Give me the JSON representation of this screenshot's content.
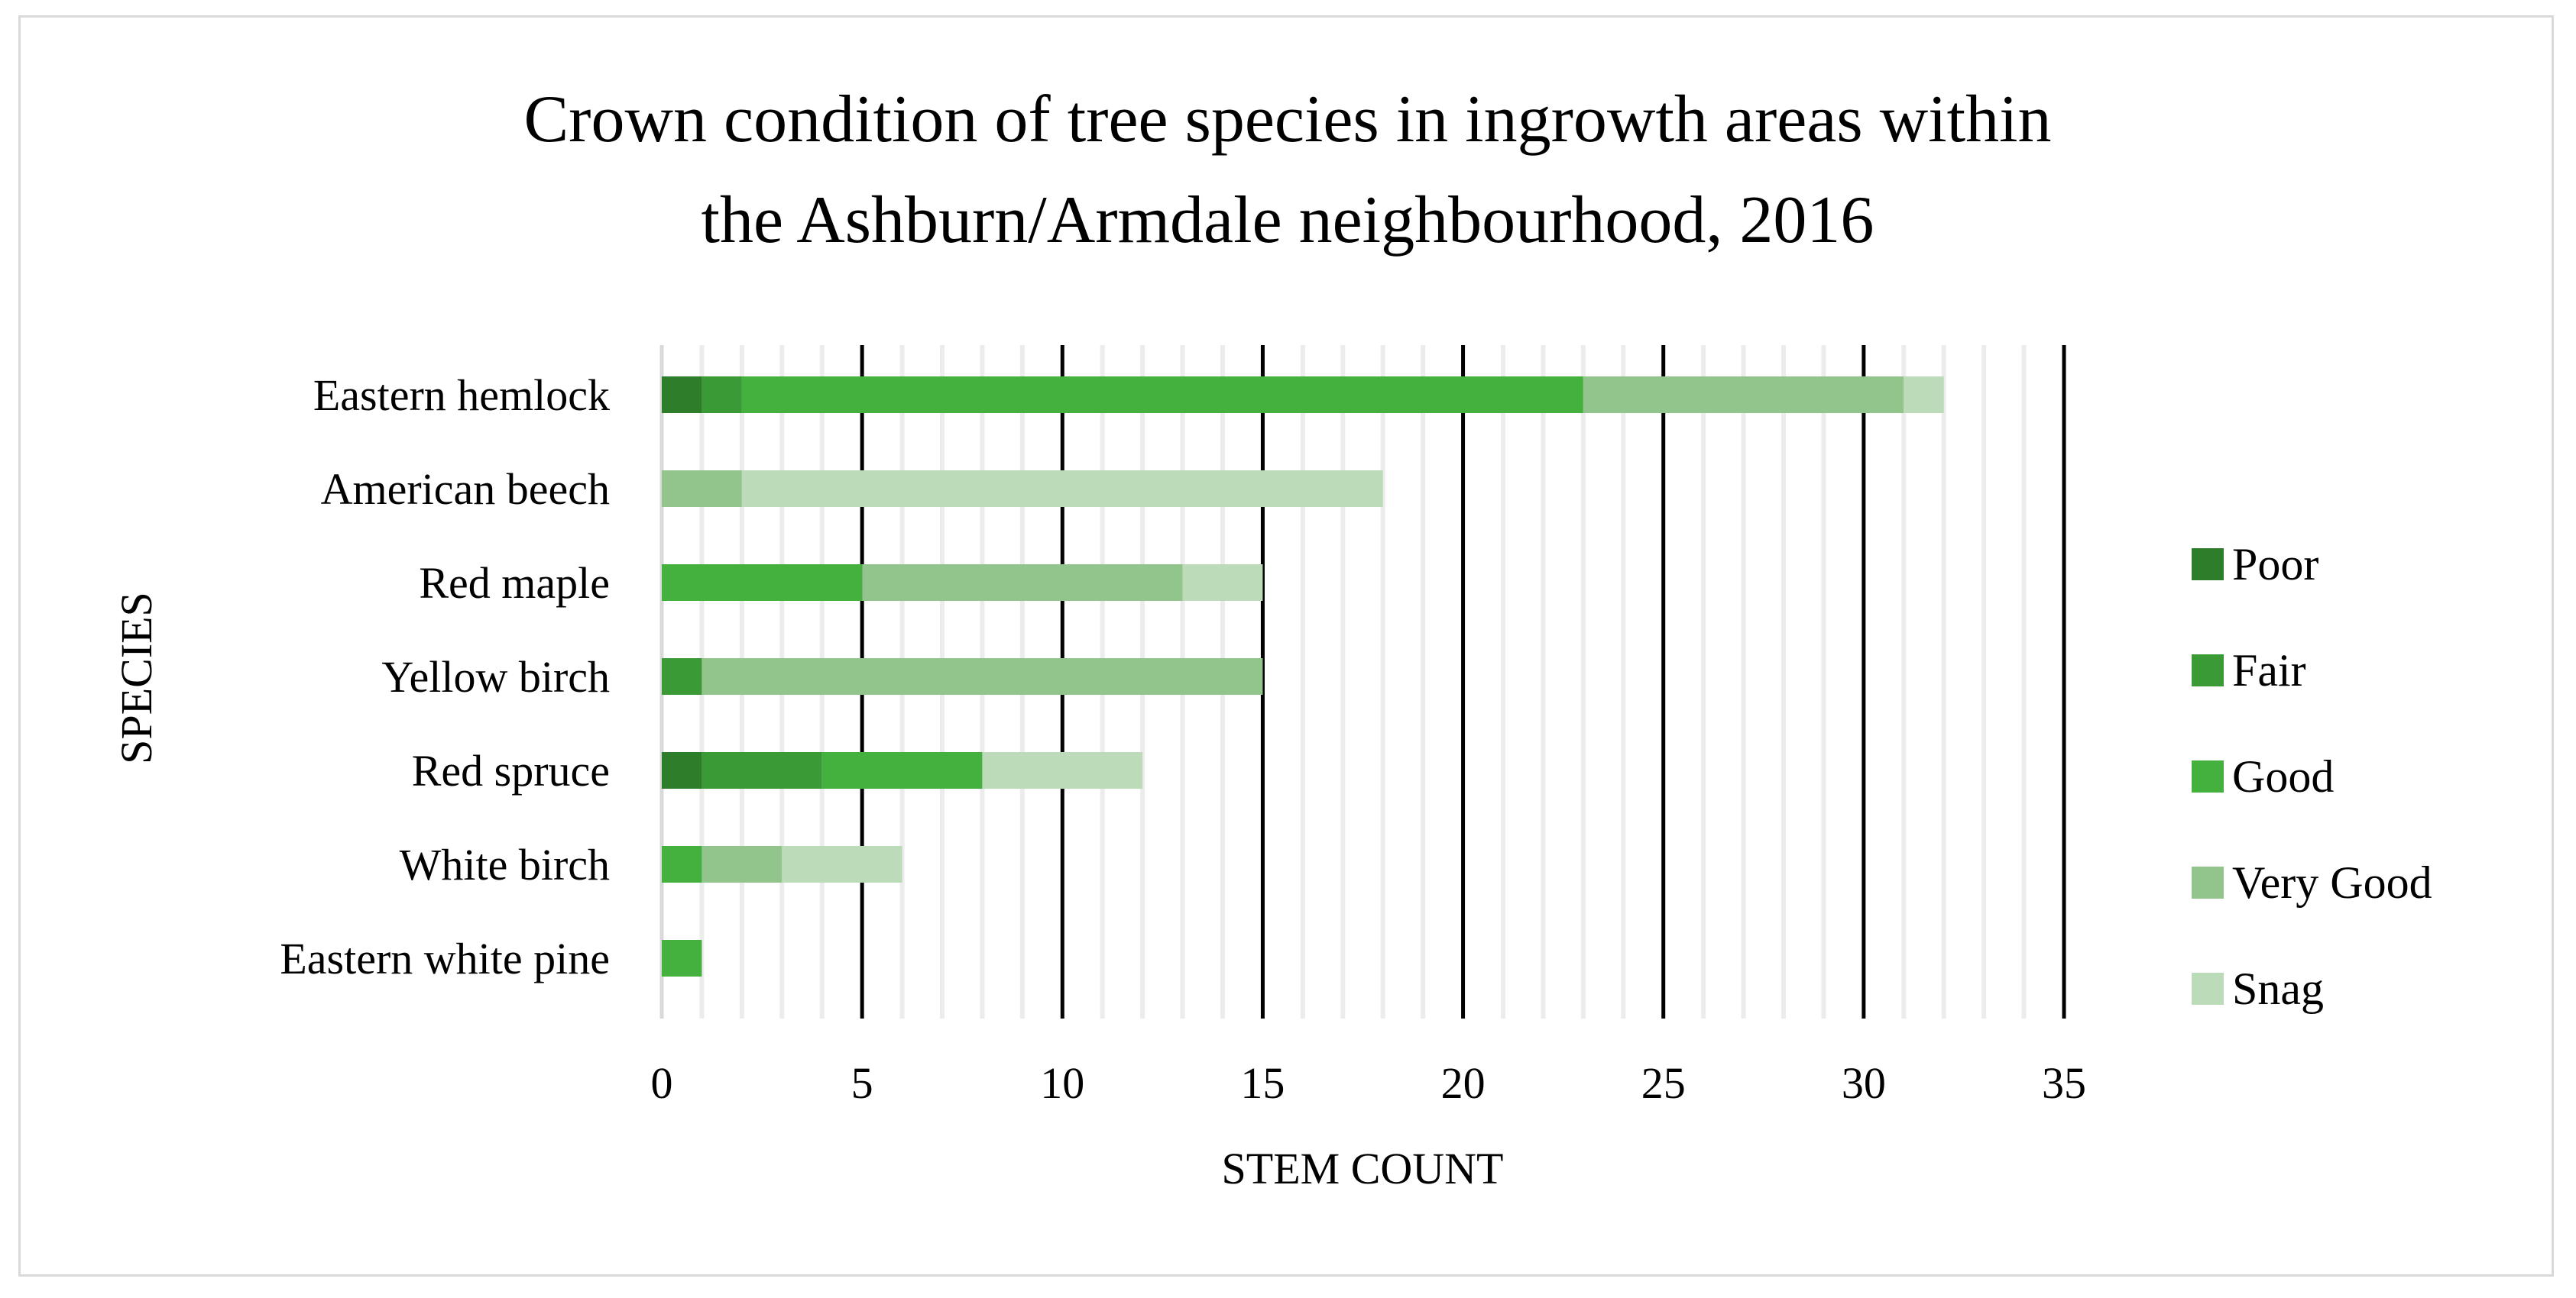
{
  "chart_data": {
    "type": "bar",
    "orientation": "horizontal",
    "stacked": true,
    "title_lines": [
      "Crown condition of tree species in ingrowth areas within",
      "the Ashburn/Armdale neighbourhood, 2016"
    ],
    "xlabel": "STEM COUNT",
    "ylabel": "SPECIES",
    "xlim": [
      0,
      35
    ],
    "x_ticks": [
      "0",
      "5",
      "10",
      "15",
      "20",
      "25",
      "30",
      "35"
    ],
    "grid": {
      "major": true,
      "minor": true
    },
    "legend_position": "right",
    "categories": [
      "Eastern hemlock",
      "American beech",
      "Red maple",
      "Yellow birch",
      "Red spruce",
      "White birch",
      "Eastern white pine"
    ],
    "series": [
      {
        "name": "Poor",
        "color": "#2e7d2a",
        "values": [
          1,
          0,
          0,
          0,
          1,
          0,
          0
        ]
      },
      {
        "name": "Fair",
        "color": "#3a9a36",
        "values": [
          1,
          0,
          0,
          1,
          3,
          0,
          0
        ]
      },
      {
        "name": "Good",
        "color": "#44b03d",
        "values": [
          21,
          0,
          5,
          0,
          4,
          1,
          1
        ]
      },
      {
        "name": "Very Good",
        "color": "#91c58c",
        "values": [
          8,
          2,
          8,
          14,
          0,
          2,
          0
        ]
      },
      {
        "name": "Snag",
        "color": "#bcdbb8",
        "values": [
          1,
          16,
          2,
          0,
          4,
          3,
          0
        ]
      }
    ]
  }
}
